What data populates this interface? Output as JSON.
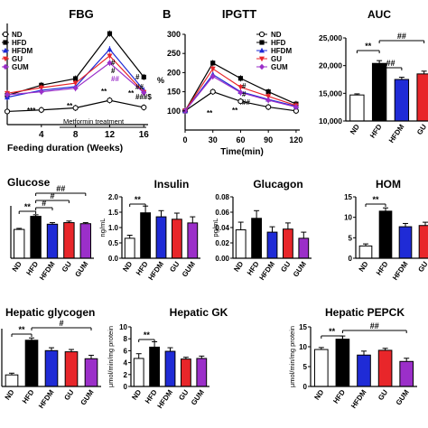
{
  "figure": {
    "panel_letter_b": "B",
    "palette": {
      "ND": "#ffffff",
      "HFD": "#000000",
      "HFDM": "#1f2bd6",
      "GU": "#e8262a",
      "GUM": "#9b2fc9"
    },
    "legend_markers": {
      "ND": "open-circle",
      "HFD": "filled-square",
      "HFDM": "filled-triangle-up",
      "GU": "filled-triangle-down",
      "GUM": "filled-diamond"
    }
  },
  "chart_data": [
    {
      "id": "fbg",
      "type": "line",
      "title": "FBG",
      "xlabel": "Feeding duration (Weeks)",
      "ylabel": "",
      "x": [
        0,
        4,
        8,
        12,
        16
      ],
      "xticks": [
        "4",
        "8",
        "12",
        "16"
      ],
      "xlim": [
        0,
        16.5
      ],
      "ylim": [
        2,
        22
      ],
      "series": [
        {
          "name": "ND",
          "values": [
            4.6,
            4.9,
            5.3,
            6.8,
            5.4
          ]
        },
        {
          "name": "HFD",
          "values": [
            7.8,
            9.8,
            11.1,
            20.0,
            11.4
          ]
        },
        {
          "name": "HFDM",
          "values": [
            7.4,
            8.8,
            9.5,
            16.9,
            8.8
          ]
        },
        {
          "name": "GU",
          "values": [
            8.2,
            9.3,
            10.2,
            15.6,
            8.4
          ]
        },
        {
          "name": "GUM",
          "values": [
            7.9,
            8.5,
            9.2,
            14.2,
            8.3
          ]
        }
      ],
      "annotations": {
        "asterisks_low": [
          "***",
          "**"
        ],
        "asterisk_12": "**",
        "asterisk_16": "**",
        "hash_12": [
          "#",
          "#",
          "##"
        ],
        "hash_16": [
          "#",
          "##",
          "###$"
        ],
        "treatment": "Metformin treatment"
      }
    },
    {
      "id": "ipgtt",
      "type": "line",
      "title": "IPGTT",
      "xlabel": "Time(min)",
      "ylabel": "%",
      "x": [
        0,
        30,
        60,
        90,
        120
      ],
      "xticks": [
        "0",
        "30",
        "60",
        "90",
        "120"
      ],
      "xlim": [
        0,
        124
      ],
      "ylim": [
        50,
        300
      ],
      "yticks": [
        "100",
        "150",
        "200",
        "250",
        "300"
      ],
      "series": [
        {
          "name": "ND",
          "values": [
            100,
            150,
            125,
            110,
            100
          ]
        },
        {
          "name": "HFD",
          "values": [
            100,
            225,
            185,
            150,
            118
          ]
        },
        {
          "name": "HFDM",
          "values": [
            100,
            195,
            150,
            130,
            112
          ]
        },
        {
          "name": "GU",
          "values": [
            100,
            210,
            162,
            138,
            114
          ]
        },
        {
          "name": "GUM",
          "values": [
            100,
            190,
            148,
            128,
            110
          ]
        }
      ],
      "annotations": {
        "asterisk_30": "**",
        "hash_60": [
          "#",
          "#",
          "##"
        ],
        "asterisk_60": "**"
      },
      "legend": [
        "ND",
        "HFD",
        "HFDM",
        "GU",
        "GUM"
      ]
    },
    {
      "id": "auc",
      "type": "bar",
      "title": "AUC",
      "categories": [
        "ND",
        "HFD",
        "HFDM",
        "GU"
      ],
      "ylim": [
        10000,
        25000
      ],
      "yticks": [
        "10,000",
        "15,000",
        "20,000",
        "25,000"
      ],
      "values": [
        14700,
        20400,
        17500,
        18500
      ],
      "errors": [
        200,
        500,
        400,
        500
      ],
      "sig": {
        "star": "**",
        "hash": [
          "##",
          "##"
        ]
      }
    },
    {
      "id": "glucose",
      "type": "bar",
      "title": "Glucose",
      "categories": [
        "ND",
        "HFD",
        "HFDM",
        "GU",
        "GUM"
      ],
      "ylim": [
        0,
        1
      ],
      "values": [
        0.55,
        0.8,
        0.65,
        0.68,
        0.66
      ],
      "errors": [
        0.02,
        0.03,
        0.03,
        0.03,
        0.02
      ],
      "sig": {
        "star": "**",
        "hash": [
          "#",
          "#",
          "##"
        ]
      }
    },
    {
      "id": "insulin",
      "type": "bar",
      "title": "Insulin",
      "ylabel": "ng/mL",
      "categories": [
        "ND",
        "HFD",
        "HFDM",
        "GU",
        "GUM"
      ],
      "ylim": [
        0,
        2.0
      ],
      "yticks": [
        "0.0",
        "0.5",
        "1.0",
        "1.5",
        "2.0"
      ],
      "values": [
        0.65,
        1.48,
        1.35,
        1.27,
        1.15
      ],
      "errors": [
        0.1,
        0.22,
        0.2,
        0.2,
        0.2
      ],
      "sig": {
        "star": "**"
      }
    },
    {
      "id": "glucagon",
      "type": "bar",
      "title": "Glucagon",
      "ylabel": "pg/mL",
      "categories": [
        "ND",
        "HFD",
        "HFDM",
        "GU",
        "GUM"
      ],
      "ylim": [
        0,
        0.08
      ],
      "yticks": [
        "0.00",
        "0.02",
        "0.04",
        "0.06",
        "0.08"
      ],
      "values": [
        0.037,
        0.052,
        0.034,
        0.038,
        0.026
      ],
      "errors": [
        0.01,
        0.01,
        0.007,
        0.008,
        0.008
      ]
    },
    {
      "id": "homa",
      "type": "bar",
      "title": "HOM",
      "categories": [
        "ND",
        "HFD",
        "HFDM",
        "GU"
      ],
      "ylim": [
        0,
        15
      ],
      "yticks": [
        "0",
        "5",
        "10",
        "15"
      ],
      "values": [
        3.0,
        11.5,
        7.7,
        8.0
      ],
      "errors": [
        0.5,
        0.8,
        0.8,
        0.8
      ],
      "sig": {
        "star": "**"
      }
    },
    {
      "id": "glycogen",
      "type": "bar",
      "title": "Hepatic glycogen",
      "categories": [
        "ND",
        "HFD",
        "HFDM",
        "GU",
        "GUM"
      ],
      "ylim": [
        0,
        1
      ],
      "values": [
        0.2,
        0.8,
        0.62,
        0.6,
        0.48
      ],
      "errors": [
        0.03,
        0.04,
        0.05,
        0.04,
        0.06
      ],
      "sig": {
        "star": "**",
        "hash": [
          "#"
        ]
      }
    },
    {
      "id": "gk",
      "type": "bar",
      "title": "Hepatic GK",
      "ylabel": "μmol/min/mg protein",
      "categories": [
        "ND",
        "HFD",
        "HFDM",
        "GU",
        "GUM"
      ],
      "ylim": [
        0,
        10
      ],
      "yticks": [
        "0",
        "2",
        "4",
        "6",
        "8",
        "10"
      ],
      "values": [
        4.7,
        6.6,
        5.9,
        4.6,
        4.7
      ],
      "errors": [
        0.8,
        0.9,
        0.6,
        0.3,
        0.4
      ],
      "sig": {
        "star": "**"
      }
    },
    {
      "id": "pepck",
      "type": "bar",
      "title": "Hepatic PEPCK",
      "ylabel": "μmol/min/mg protein",
      "categories": [
        "ND",
        "HFD",
        "HFDM",
        "GU",
        "GUM"
      ],
      "ylim": [
        0,
        15
      ],
      "yticks": [
        "0",
        "5",
        "10",
        "15"
      ],
      "values": [
        9.3,
        11.9,
        7.9,
        9.1,
        6.3
      ],
      "errors": [
        0.5,
        0.8,
        1.0,
        0.5,
        0.8
      ],
      "sig": {
        "star": "**",
        "hash": [
          "##"
        ]
      }
    }
  ]
}
